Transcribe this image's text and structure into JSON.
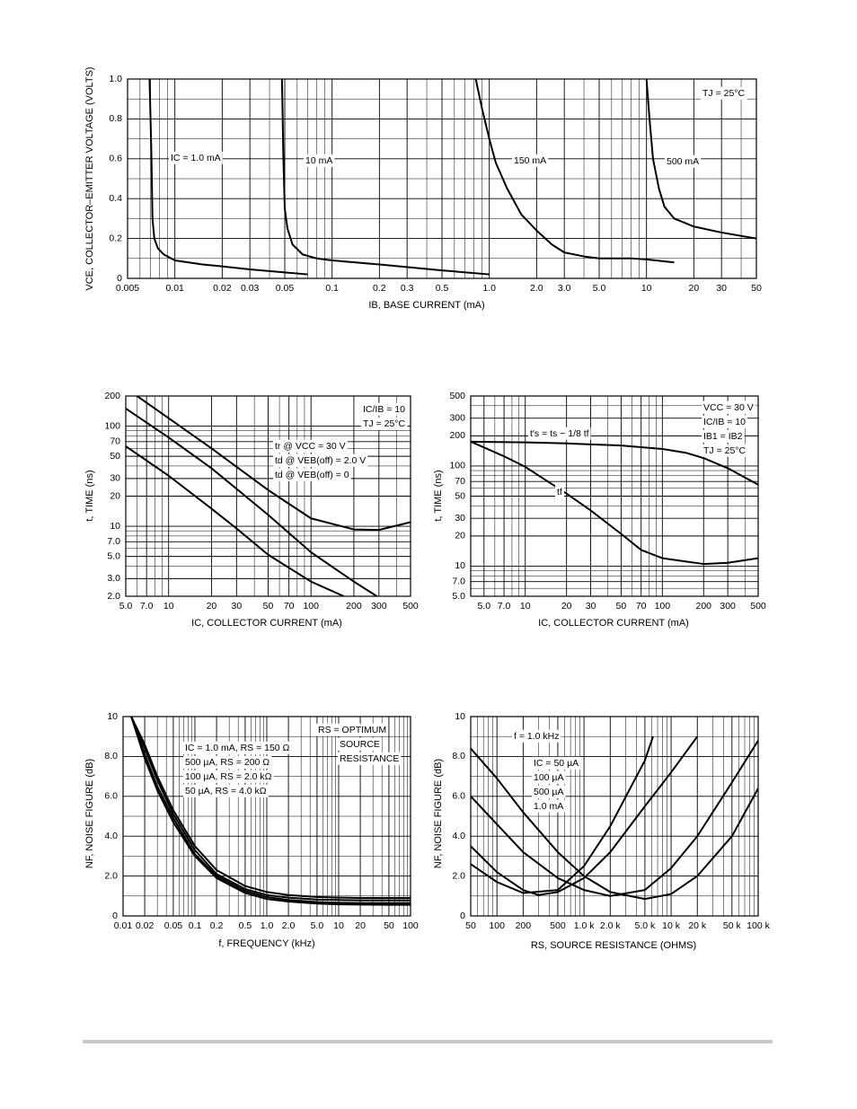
{
  "chart_data": [
    {
      "type": "line",
      "xscale": "log",
      "yscale": "linear",
      "grid": true,
      "color": "#000000",
      "x_label": "IB, BASE CURRENT (mA)",
      "y_label": "VCE, COLLECTOR–EMITTER VOLTAGE (VOLTS)",
      "xlim": [
        0.005,
        50
      ],
      "ylim": [
        0,
        1
      ],
      "xticks": [
        0.005,
        0.01,
        0.02,
        0.03,
        0.05,
        0.1,
        0.2,
        0.3,
        0.5,
        {
          "value": 1,
          "label": "1.0"
        },
        {
          "value": 2,
          "label": "2.0"
        },
        {
          "value": 3,
          "label": "3.0"
        },
        {
          "value": 5,
          "label": "5.0"
        },
        10,
        20,
        30,
        50
      ],
      "yticks": [
        0,
        0.2,
        0.4,
        0.6,
        0.8,
        {
          "value": 1,
          "label": "1.0"
        }
      ],
      "annotations": [
        "TJ = 25°C"
      ],
      "series": [
        {
          "name": "IC = 1.0 mA",
          "color": "#000000",
          "x": [
            0.0069,
            0.0071,
            0.0072,
            0.0074,
            0.0078,
            0.0085,
            0.01,
            0.015,
            0.02,
            0.03,
            0.05,
            0.07
          ],
          "values": [
            1.0,
            0.6,
            0.3,
            0.2,
            0.15,
            0.12,
            0.09,
            0.07,
            0.06,
            0.045,
            0.03,
            0.02
          ]
        },
        {
          "name": "10 mA",
          "color": "#000000",
          "x": [
            0.048,
            0.049,
            0.05,
            0.052,
            0.056,
            0.065,
            0.08,
            0.1,
            0.2,
            0.5,
            1.0
          ],
          "values": [
            1.0,
            0.6,
            0.35,
            0.25,
            0.17,
            0.12,
            0.1,
            0.09,
            0.07,
            0.04,
            0.02
          ]
        },
        {
          "name": "150 mA",
          "color": "#000000",
          "x": [
            0.82,
            0.9,
            1.0,
            1.1,
            1.3,
            1.6,
            2.0,
            2.5,
            3.0,
            4.0,
            5.0,
            8.0,
            10,
            15
          ],
          "values": [
            1.0,
            0.85,
            0.7,
            0.58,
            0.45,
            0.32,
            0.24,
            0.17,
            0.13,
            0.11,
            0.1,
            0.1,
            0.095,
            0.08
          ]
        },
        {
          "name": "500 mA",
          "color": "#000000",
          "x": [
            10,
            10.5,
            11,
            12,
            13,
            15,
            20,
            30,
            50
          ],
          "values": [
            1.0,
            0.78,
            0.6,
            0.45,
            0.36,
            0.3,
            0.26,
            0.23,
            0.2
          ]
        }
      ]
    },
    {
      "type": "line",
      "xscale": "log",
      "yscale": "log",
      "grid": true,
      "color": "#000000",
      "x_label": "IC, COLLECTOR CURRENT (mA)",
      "y_label": "t, TIME (ns)",
      "xlim": [
        5,
        500
      ],
      "ylim": [
        2,
        200
      ],
      "xticks": [
        {
          "value": 5,
          "label": "5.0"
        },
        {
          "value": 7,
          "label": "7.0"
        },
        10,
        20,
        30,
        50,
        70,
        100,
        200,
        300,
        500
      ],
      "yticks": [
        {
          "value": 2,
          "label": "2.0"
        },
        {
          "value": 3,
          "label": "3.0"
        },
        {
          "value": 5,
          "label": "5.0"
        },
        {
          "value": 7,
          "label": "7.0"
        },
        10,
        20,
        30,
        50,
        70,
        100,
        200
      ],
      "annotations": [
        "IC/IB = 10",
        "TJ = 25°C"
      ],
      "series": [
        {
          "name": "tr @ VCC = 30 V",
          "color": "#000000",
          "x": [
            6,
            10,
            20,
            50,
            100,
            200,
            300,
            500
          ],
          "values": [
            200,
            120,
            60,
            23,
            12,
            9.3,
            9.2,
            11
          ]
        },
        {
          "name": "td @ VEB(off) = 2.0 V",
          "color": "#000000",
          "x": [
            5,
            10,
            20,
            50,
            100,
            200,
            290
          ],
          "values": [
            150,
            77,
            38,
            13,
            5.5,
            2.8,
            2.0
          ]
        },
        {
          "name": "td @ VEB(off) = 0",
          "color": "#000000",
          "x": [
            5,
            10,
            20,
            30,
            50,
            100,
            170
          ],
          "values": [
            63,
            32,
            15,
            9.5,
            5.2,
            2.8,
            2.0
          ]
        }
      ]
    },
    {
      "type": "line",
      "xscale": "log",
      "yscale": "log",
      "grid": true,
      "color": "#000000",
      "x_label": "IC, COLLECTOR CURRENT (mA)",
      "y_label": "t, TIME (ns)",
      "xlim": [
        4,
        500
      ],
      "ylim": [
        5,
        500
      ],
      "xticks": [
        {
          "value": 5,
          "label": "5.0"
        },
        {
          "value": 7,
          "label": "7.0"
        },
        10,
        20,
        30,
        50,
        70,
        100,
        200,
        300,
        500
      ],
      "yticks": [
        {
          "value": 5,
          "label": "5.0"
        },
        {
          "value": 7,
          "label": "7.0"
        },
        10,
        20,
        30,
        50,
        70,
        100,
        200,
        300,
        500
      ],
      "annotations": [
        "VCC = 30 V",
        "IC/IB = 10",
        "IB1 = IB2",
        "TJ = 25°C"
      ],
      "series": [
        {
          "name": "t′s = ts − 1/8 tf",
          "color": "#000000",
          "x": [
            4,
            10,
            20,
            50,
            100,
            150,
            200,
            300,
            500
          ],
          "values": [
            175,
            172,
            168,
            160,
            148,
            135,
            120,
            95,
            65
          ]
        },
        {
          "name": "tf",
          "color": "#000000",
          "x": [
            4,
            7,
            10,
            20,
            30,
            50,
            70,
            100,
            200,
            300,
            500
          ],
          "values": [
            175,
            125,
            98,
            53,
            36,
            21,
            14.5,
            12,
            10.5,
            10.8,
            12
          ]
        }
      ]
    },
    {
      "type": "line",
      "xscale": "log",
      "yscale": "linear",
      "grid": true,
      "color": "#000000",
      "x_label": "f, FREQUENCY (kHz)",
      "y_label": "NF, NOISE FIGURE (dB)",
      "xlim": [
        0.01,
        100
      ],
      "ylim": [
        0,
        10
      ],
      "xticks": [
        0.01,
        0.02,
        0.05,
        0.1,
        0.2,
        0.5,
        {
          "value": 1,
          "label": "1.0"
        },
        {
          "value": 2,
          "label": "2.0"
        },
        {
          "value": 5,
          "label": "5.0"
        },
        10,
        20,
        50,
        100
      ],
      "yticks": [
        0,
        {
          "value": 2,
          "label": "2.0"
        },
        {
          "value": 4,
          "label": "4.0"
        },
        {
          "value": 6,
          "label": "6.0"
        },
        {
          "value": 8,
          "label": "8.0"
        },
        10
      ],
      "annotations": [
        "RS = OPTIMUM",
        "SOURCE",
        "RESISTANCE"
      ],
      "series": [
        {
          "name": "IC = 1.0 mA, RS = 150 Ω",
          "color": "#000000",
          "x": [
            0.013,
            0.02,
            0.03,
            0.05,
            0.1,
            0.2,
            0.5,
            1,
            2,
            5,
            10,
            20,
            50,
            100
          ],
          "values": [
            10,
            8.6,
            7,
            5.3,
            3.5,
            2.3,
            1.5,
            1.2,
            1.05,
            0.95,
            0.92,
            0.9,
            0.9,
            0.9
          ]
        },
        {
          "name": "500 µA, RS = 200 Ω",
          "color": "#000000",
          "x": [
            0.013,
            0.02,
            0.03,
            0.05,
            0.1,
            0.2,
            0.5,
            1,
            2,
            5,
            10,
            20,
            50,
            100
          ],
          "values": [
            10,
            8.4,
            6.8,
            5.1,
            3.3,
            2.1,
            1.35,
            1.05,
            0.92,
            0.82,
            0.8,
            0.78,
            0.78,
            0.78
          ]
        },
        {
          "name": "100 µA, RS = 2.0 kΩ",
          "color": "#000000",
          "x": [
            0.013,
            0.02,
            0.03,
            0.05,
            0.1,
            0.2,
            0.5,
            1,
            2,
            5,
            10,
            20,
            50,
            100
          ],
          "values": [
            10,
            8.1,
            6.5,
            4.9,
            3.1,
            2.0,
            1.25,
            0.95,
            0.8,
            0.7,
            0.66,
            0.65,
            0.65,
            0.65
          ]
        },
        {
          "name": "50 µA, RS = 4.0 kΩ",
          "color": "#000000",
          "x": [
            0.013,
            0.02,
            0.03,
            0.05,
            0.1,
            0.2,
            0.5,
            1,
            2,
            5,
            10,
            20,
            50,
            100
          ],
          "values": [
            10,
            7.9,
            6.3,
            4.7,
            3.0,
            1.9,
            1.15,
            0.85,
            0.72,
            0.62,
            0.58,
            0.57,
            0.56,
            0.56
          ]
        }
      ]
    },
    {
      "type": "line",
      "xscale": "log",
      "yscale": "linear",
      "grid": true,
      "color": "#000000",
      "x_label": "RS, SOURCE RESISTANCE (OHMS)",
      "y_label": "NF, NOISE FIGURE (dB)",
      "xlim": [
        50,
        100000
      ],
      "ylim": [
        0,
        10
      ],
      "xticks": [
        50,
        100,
        200,
        500,
        {
          "value": 1000,
          "label": "1.0 k"
        },
        {
          "value": 2000,
          "label": "2.0 k"
        },
        {
          "value": 5000,
          "label": "5.0 k"
        },
        {
          "value": 10000,
          "label": "10 k"
        },
        {
          "value": 20000,
          "label": "20 k"
        },
        {
          "value": 50000,
          "label": "50 k"
        },
        {
          "value": 100000,
          "label": "100 k"
        }
      ],
      "yticks": [
        0,
        {
          "value": 2,
          "label": "2.0"
        },
        {
          "value": 4,
          "label": "4.0"
        },
        {
          "value": 6,
          "label": "6.0"
        },
        {
          "value": 8,
          "label": "8.0"
        },
        10
      ],
      "annotations": [
        "f = 1.0 kHz"
      ],
      "series": [
        {
          "name": "IC = 50 µA",
          "color": "#000000",
          "x": [
            50,
            100,
            200,
            500,
            1000,
            2000,
            5000,
            10000,
            20000,
            50000,
            100000
          ],
          "values": [
            8.4,
            6.9,
            5.2,
            3.2,
            2.0,
            1.2,
            0.85,
            1.1,
            2.0,
            4.0,
            6.4
          ]
        },
        {
          "name": "100 µA",
          "color": "#000000",
          "x": [
            50,
            100,
            200,
            500,
            1000,
            2000,
            5000,
            10000,
            20000,
            50000,
            100000
          ],
          "values": [
            6.0,
            4.6,
            3.2,
            1.9,
            1.3,
            1.0,
            1.3,
            2.4,
            4.0,
            6.7,
            8.8
          ]
        },
        {
          "name": "500 µA",
          "color": "#000000",
          "x": [
            50,
            100,
            200,
            300,
            500,
            1000,
            2000,
            5000,
            10000,
            20000
          ],
          "values": [
            3.5,
            2.2,
            1.3,
            1.05,
            1.2,
            1.9,
            3.2,
            5.5,
            7.2,
            9.0
          ]
        },
        {
          "name": "1.0 mA",
          "color": "#000000",
          "x": [
            50,
            100,
            200,
            500,
            1000,
            2000,
            5000,
            6200
          ],
          "values": [
            2.6,
            1.7,
            1.15,
            1.3,
            2.5,
            4.5,
            7.8,
            9.0
          ]
        }
      ]
    }
  ]
}
